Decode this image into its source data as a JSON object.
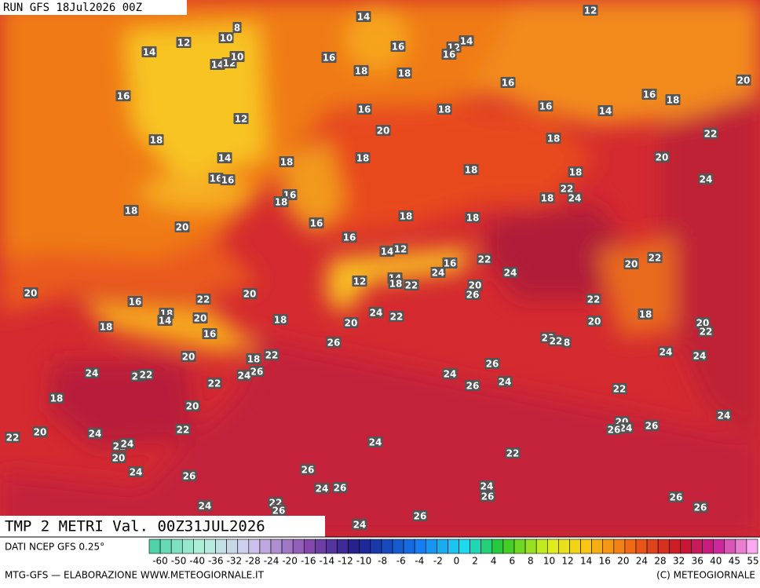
{
  "header": {
    "run": "RUN GFS 18Jul2026 00Z"
  },
  "map": {
    "title": "TMP 2 METRI Val. 00Z31JUL2026",
    "labels": [
      14,
      12,
      12,
      10,
      8,
      14,
      14,
      12,
      10,
      16,
      16,
      12,
      14,
      16,
      18,
      18,
      20,
      16,
      16,
      16,
      18,
      16,
      18,
      16,
      14,
      12,
      20,
      22,
      18,
      18,
      14,
      18,
      18,
      20,
      18,
      18,
      16,
      16,
      24,
      22,
      16,
      18,
      18,
      24,
      18,
      18,
      18,
      16,
      20,
      16,
      14,
      12,
      22,
      16,
      22,
      20,
      24,
      24,
      12,
      14,
      18,
      22,
      20,
      26,
      20,
      20,
      22,
      22,
      16,
      18,
      14,
      20,
      18,
      24,
      22,
      20,
      18,
      20,
      18,
      20,
      22,
      16,
      22,
      22,
      8,
      26,
      24,
      24,
      20,
      18,
      22,
      26,
      24,
      22,
      22,
      26,
      24,
      24,
      22,
      24,
      26,
      22,
      18,
      20,
      24,
      20,
      24,
      26,
      26,
      20,
      24,
      22,
      22,
      24,
      22,
      24,
      20,
      22,
      24,
      26,
      26,
      24,
      26,
      24,
      26,
      22,
      26,
      24,
      26,
      26,
      26,
      24
    ]
  },
  "legend": {
    "source": "DATI NCEP GFS 0.25°",
    "ticks": [
      -60,
      -50,
      -40,
      -36,
      -32,
      -28,
      -24,
      -20,
      -16,
      -14,
      -12,
      -10,
      -8,
      -6,
      -4,
      -2,
      0,
      2,
      4,
      6,
      8,
      10,
      12,
      14,
      16,
      20,
      24,
      28,
      32,
      36,
      40,
      45,
      55
    ]
  },
  "footer": {
    "left": "MTG-GFS — ELABORAZIONE WWW.METEOGIORNALE.IT",
    "right": "(C) METEOGIORNALE"
  }
}
